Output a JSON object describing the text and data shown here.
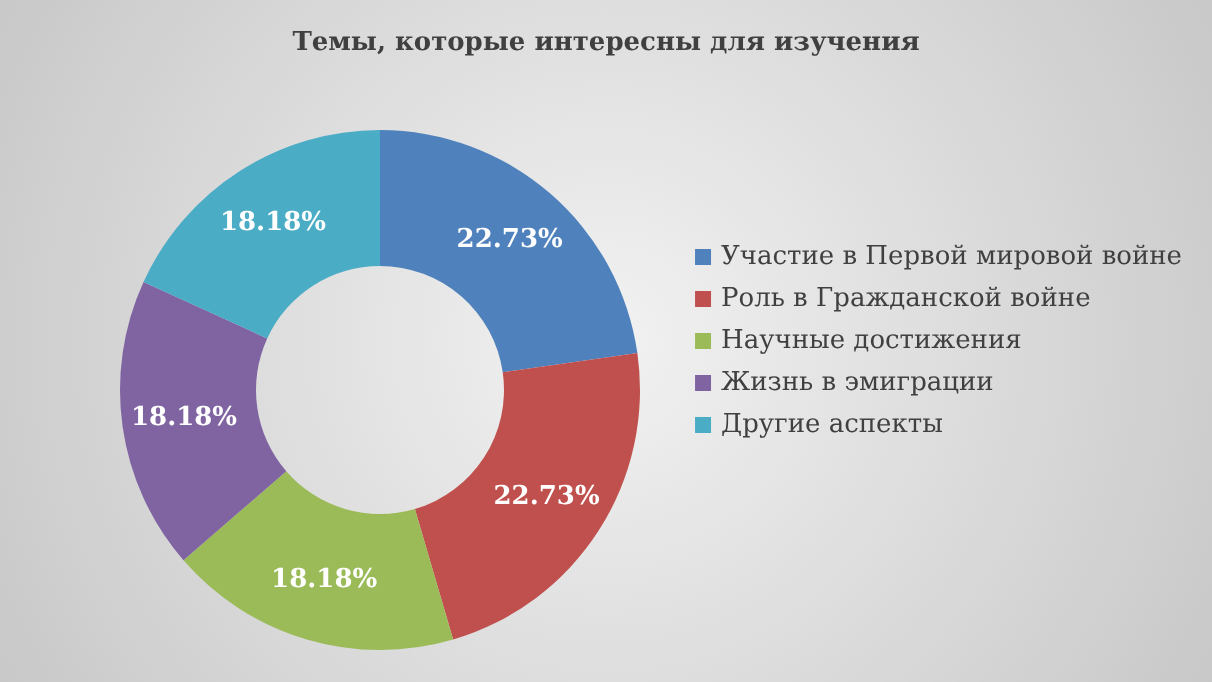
{
  "chart_data": {
    "type": "donut",
    "title": "Темы, которые интересны для изучения",
    "categories": [
      "Участие в Первой мировой войне",
      "Роль в Гражданской войне",
      "Научные достижения",
      "Жизнь в эмиграции",
      "Другие аспекты"
    ],
    "values": [
      22.73,
      22.73,
      18.18,
      18.18,
      18.18
    ],
    "colors": [
      "#4f81bd",
      "#c0504d",
      "#9bbb59",
      "#8064a2",
      "#4bacc6"
    ],
    "value_labels": [
      "22.73%",
      "22.73%",
      "18.18%",
      "18.18%",
      "18.18%"
    ],
    "legend": "right"
  }
}
